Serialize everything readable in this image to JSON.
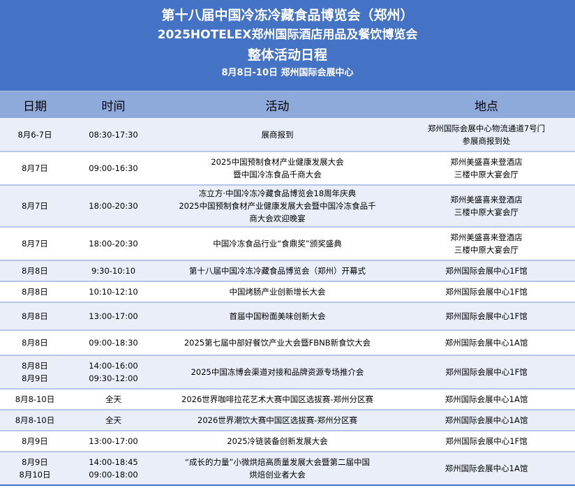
{
  "banner": {
    "title1": "第十八届中国冷冻冷藏食品博览会（郑州）",
    "title2": "2025HOTELEX郑州国际酒店用品及餐饮博览会",
    "title3": "整体活动日程",
    "subtitle": "8月8日-10日  郑州国际会展中心"
  },
  "colors": {
    "banner": "#4472C4",
    "header": "#8EAADB",
    "alt_row": "#E9EEF8",
    "border": "#B4C6E7"
  },
  "table": {
    "headers": [
      "日期",
      "时间",
      "活动",
      "地点"
    ],
    "rows": [
      {
        "date": "8月6-7日",
        "time": "08:30-17:30",
        "activity": "展商报到",
        "location": "郑州国际会展中心物流通道7号门\n参展商报到处"
      },
      {
        "date": "8月7日",
        "time": "09:00-16:30",
        "activity": "2025中国预制食材产业健康发展大会\n暨中国冷冻食品千商大会",
        "location": "郑州美盛喜来登酒店\n三楼中原大宴会厅"
      },
      {
        "date": "8月7日",
        "time": "18:00-20:30",
        "activity": "冻立方·中国冷冻冷藏食品博览会18周年庆典\n2025中国预制食材产业健康发展大会暨中国冷冻食品千\n商大会欢迎晚宴",
        "location": "郑州美盛喜来登酒店\n三楼中原大宴会厅"
      },
      {
        "date": "8月7日",
        "time": "18:00-20:30",
        "activity": "中国冷冻食品行业“食鼎奖”颁奖盛典",
        "location": "郑州美盛喜来登酒店\n三楼中原大宴会厅"
      },
      {
        "date": "8月8日",
        "time": "9:30-10:10",
        "activity": "第十八届中国冷冻冷藏食品博览会（郑州）开幕式",
        "location": "郑州国际会展中心1F馆"
      },
      {
        "date": "8月8日",
        "time": "10:10-12:10",
        "activity": "中国烤肠产业创新增长大会",
        "location": "郑州国际会展中心1F馆"
      },
      {
        "date": "8月8日",
        "time": "13:00-17:00",
        "activity": "首届中国粉面美味创新大会",
        "location": "郑州国际会展中心1F馆"
      },
      {
        "date": "8月8日",
        "time": "09:00-18:30",
        "activity": "2025第七届中部好餐饮产业大会暨FBNB新食饮大会",
        "location": "郑州国际会展中心1A馆"
      },
      {
        "date": "8月8日\n8月9日",
        "time": "14:00-16:00\n09:30-12:00",
        "activity": "2025中国冻博会渠道对接和品牌资源专场推介会",
        "location": "郑州国际会展中心1F馆"
      },
      {
        "date": "8月8-10日",
        "time": "全天",
        "activity": "2026世界咖啡拉花艺术大赛中国区选拔赛-郑州分区赛",
        "location": "郑州国际会展中心1A馆"
      },
      {
        "date": "8月8-10日",
        "time": "全天",
        "activity": "2026世界潮饮大赛中国区选拔赛-郑州分区赛",
        "location": "郑州国际会展中心1A馆"
      },
      {
        "date": "8月9日",
        "time": "13:00-17:00",
        "activity": "2025冷链装备创新发展大会",
        "location": "郑州国际会展中心1F馆"
      },
      {
        "date": "8月9日\n8月10日",
        "time": "14:00-18:45\n09:00-18:00",
        "activity": "“成长的力量”小微烘焙高质量发展大会暨第二届中国\n烘焙创业者大会",
        "location": "郑州国际会展中心1A馆"
      }
    ]
  }
}
